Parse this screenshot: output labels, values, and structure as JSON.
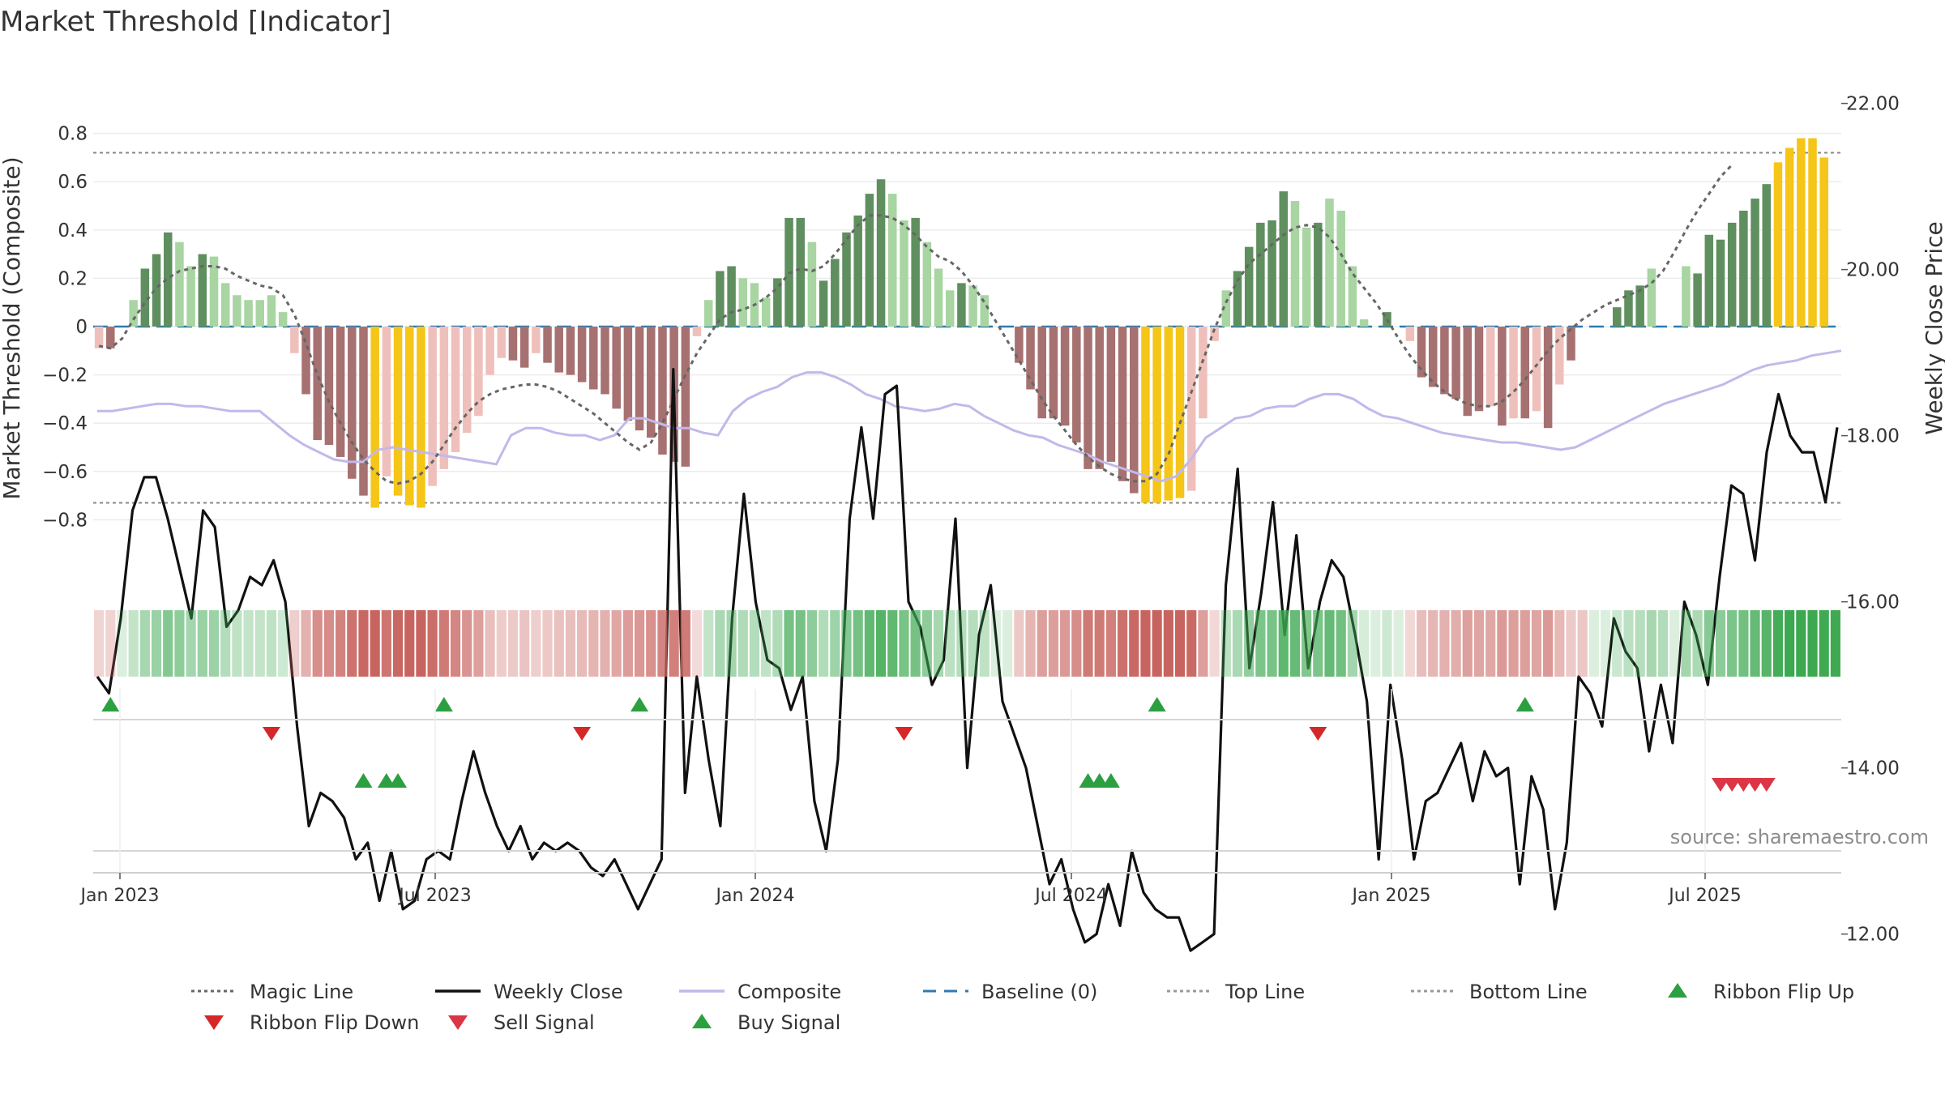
{
  "chart_data": {
    "type": "bar",
    "title": "Market Threshold [Indicator]",
    "ylabel_left": "Market Threshold (Composite)",
    "ylabel_right": "Weekly Close Price",
    "ylim_left": [
      -0.86,
      0.84
    ],
    "ylim_right": [
      11.2,
      23.7
    ],
    "yticks_left": [
      "0.8",
      "0.6",
      "0.4",
      "0.2",
      "0",
      "−0.2",
      "−0.4",
      "−0.6",
      "−0.8"
    ],
    "yticks_right": [
      "22.00",
      "20.00",
      "18.00",
      "16.00",
      "14.00",
      "12.00"
    ],
    "xticks": [
      "Jan 2023",
      "Jul 2023",
      "Jan 2024",
      "Jul 2024",
      "Jan 2025",
      "Jul 2025"
    ],
    "top_line": 0.72,
    "bottom_line": -0.73,
    "source": "source: sharemaestro.com",
    "legend": [
      "Magic Line",
      "Weekly Close",
      "Composite",
      "Baseline (0)",
      "Top Line",
      "Bottom Line",
      "Ribbon Flip Up",
      "Ribbon Flip Down",
      "Sell Signal",
      "Buy Signal"
    ],
    "colors": {
      "dark_green": "#5f8f5f",
      "light_green": "#a8d5a2",
      "dark_red": "#a67170",
      "light_red": "#efc0bb",
      "yellow": "#f5c518",
      "weekly_close": "#111111",
      "composite": "#c3b8ea",
      "magic_line": "#666666",
      "baseline": "#2e7bb0",
      "buy": "#2ca040",
      "sell": "#dc3545",
      "flip_down": "#d62728"
    },
    "series": {
      "histogram": [
        -0.09,
        -0.09,
        0.0,
        0.11,
        0.24,
        0.3,
        0.39,
        0.35,
        0.25,
        0.3,
        0.29,
        0.18,
        0.13,
        0.11,
        0.11,
        0.13,
        0.06,
        -0.11,
        -0.28,
        -0.47,
        -0.49,
        -0.54,
        -0.63,
        -0.7,
        -0.75,
        -0.62,
        -0.7,
        -0.74,
        -0.75,
        -0.66,
        -0.59,
        -0.52,
        -0.44,
        -0.37,
        -0.2,
        -0.13,
        -0.14,
        -0.17,
        -0.11,
        -0.15,
        -0.19,
        -0.2,
        -0.23,
        -0.26,
        -0.28,
        -0.34,
        -0.39,
        -0.43,
        -0.46,
        -0.53,
        -0.56,
        -0.58,
        -0.04,
        0.11,
        0.23,
        0.25,
        0.2,
        0.18,
        0.12,
        0.2,
        0.45,
        0.45,
        0.35,
        0.19,
        0.28,
        0.39,
        0.46,
        0.55,
        0.61,
        0.55,
        0.44,
        0.45,
        0.35,
        0.24,
        0.15,
        0.18,
        0.17,
        0.13,
        0.0,
        0.0,
        -0.15,
        -0.26,
        -0.38,
        -0.38,
        -0.41,
        -0.48,
        -0.59,
        -0.59,
        -0.56,
        -0.64,
        -0.69,
        -0.73,
        -0.73,
        -0.72,
        -0.71,
        -0.68,
        -0.38,
        -0.06,
        0.15,
        0.23,
        0.33,
        0.43,
        0.44,
        0.56,
        0.52,
        0.41,
        0.43,
        0.53,
        0.48,
        0.25,
        0.03,
        0.0,
        0.06,
        0.0,
        -0.06,
        -0.21,
        -0.25,
        -0.28,
        -0.3,
        -0.37,
        -0.35,
        -0.33,
        -0.41,
        -0.38,
        -0.38,
        -0.35,
        -0.42,
        -0.24,
        -0.14,
        -0.16,
        0.0,
        0.0,
        0.08,
        0.15,
        0.17,
        0.24,
        0.19,
        0.0,
        0.25,
        0.22,
        0.38,
        0.36,
        0.43,
        0.48,
        0.53,
        0.59,
        0.68,
        0.74,
        0.78,
        0.78,
        0.7,
        0.7
      ],
      "bar_color": [
        "LR",
        "DR",
        "N",
        "LG",
        "DG",
        "DG",
        "DG",
        "LG",
        "LG",
        "DG",
        "LG",
        "LG",
        "LG",
        "LG",
        "LG",
        "LG",
        "LG",
        "LR",
        "DR",
        "DR",
        "DR",
        "DR",
        "DR",
        "DR",
        "Y",
        "LR",
        "Y",
        "Y",
        "Y",
        "LR",
        "LR",
        "LR",
        "LR",
        "LR",
        "LR",
        "LR",
        "DR",
        "DR",
        "LR",
        "DR",
        "DR",
        "DR",
        "DR",
        "DR",
        "DR",
        "DR",
        "DR",
        "DR",
        "DR",
        "DR",
        "DR",
        "DR",
        "LR",
        "LG",
        "DG",
        "DG",
        "LG",
        "LG",
        "LG",
        "DG",
        "DG",
        "DG",
        "LG",
        "DG",
        "DG",
        "DG",
        "DG",
        "DG",
        "DG",
        "LG",
        "LG",
        "DG",
        "LG",
        "LG",
        "LG",
        "DG",
        "LG",
        "LG",
        "N",
        "N",
        "DR",
        "DR",
        "DR",
        "DR",
        "DR",
        "DR",
        "DR",
        "DR",
        "DR",
        "DR",
        "DR",
        "Y",
        "Y",
        "Y",
        "Y",
        "LR",
        "LR",
        "LR",
        "LG",
        "DG",
        "DG",
        "DG",
        "DG",
        "DG",
        "LG",
        "LG",
        "DG",
        "LG",
        "LG",
        "LG",
        "LG",
        "N",
        "DG",
        "N",
        "LR",
        "DR",
        "DR",
        "DR",
        "DR",
        "DR",
        "DR",
        "LR",
        "DR",
        "LR",
        "DR",
        "LR",
        "DR",
        "LR",
        "DR",
        "N",
        "N",
        "DG",
        "DG",
        "DG",
        "DG",
        "LG",
        "N",
        "DG",
        "LG",
        "DG",
        "DG",
        "DG",
        "DG",
        "DG",
        "DG",
        "DG",
        "Y",
        "Y",
        "Y",
        "Y",
        "Y"
      ],
      "magic_line": [
        -0.08,
        -0.09,
        -0.05,
        0.03,
        0.1,
        0.16,
        0.2,
        0.23,
        0.24,
        0.25,
        0.25,
        0.24,
        0.21,
        0.19,
        0.17,
        0.16,
        0.13,
        0.05,
        -0.07,
        -0.2,
        -0.31,
        -0.4,
        -0.48,
        -0.55,
        -0.6,
        -0.64,
        -0.65,
        -0.64,
        -0.61,
        -0.56,
        -0.49,
        -0.42,
        -0.36,
        -0.31,
        -0.28,
        -0.26,
        -0.25,
        -0.24,
        -0.24,
        -0.25,
        -0.27,
        -0.3,
        -0.33,
        -0.36,
        -0.4,
        -0.44,
        -0.48,
        -0.51,
        -0.48,
        -0.4,
        -0.3,
        -0.2,
        -0.11,
        -0.04,
        0.03,
        0.06,
        0.07,
        0.09,
        0.12,
        0.16,
        0.22,
        0.24,
        0.23,
        0.25,
        0.3,
        0.36,
        0.42,
        0.46,
        0.46,
        0.45,
        0.42,
        0.38,
        0.33,
        0.29,
        0.27,
        0.23,
        0.17,
        0.1,
        0.02,
        -0.06,
        -0.14,
        -0.22,
        -0.3,
        -0.37,
        -0.43,
        -0.49,
        -0.54,
        -0.58,
        -0.61,
        -0.63,
        -0.64,
        -0.64,
        -0.61,
        -0.53,
        -0.4,
        -0.27,
        -0.14,
        -0.01,
        0.1,
        0.19,
        0.26,
        0.3,
        0.34,
        0.38,
        0.41,
        0.42,
        0.41,
        0.37,
        0.3,
        0.22,
        0.16,
        0.1,
        0.03,
        -0.05,
        -0.12,
        -0.18,
        -0.23,
        -0.27,
        -0.3,
        -0.32,
        -0.33,
        -0.33,
        -0.31,
        -0.27,
        -0.22,
        -0.16,
        -0.1,
        -0.05,
        -0.01,
        0.03,
        0.06,
        0.09,
        0.11,
        0.13,
        0.15,
        0.18,
        0.23,
        0.31,
        0.4,
        0.48,
        0.55,
        0.62,
        0.67
      ],
      "composite": [
        -0.35,
        -0.35,
        -0.34,
        -0.33,
        -0.32,
        -0.32,
        -0.33,
        -0.33,
        -0.34,
        -0.35,
        -0.35,
        -0.35,
        -0.4,
        -0.45,
        -0.49,
        -0.52,
        -0.55,
        -0.56,
        -0.56,
        -0.51,
        -0.5,
        -0.51,
        -0.52,
        -0.53,
        -0.54,
        -0.55,
        -0.56,
        -0.57,
        -0.45,
        -0.42,
        -0.42,
        -0.44,
        -0.45,
        -0.45,
        -0.47,
        -0.45,
        -0.38,
        -0.38,
        -0.4,
        -0.42,
        -0.42,
        -0.44,
        -0.45,
        -0.35,
        -0.3,
        -0.27,
        -0.25,
        -0.21,
        -0.19,
        -0.19,
        -0.21,
        -0.24,
        -0.28,
        -0.3,
        -0.33,
        -0.34,
        -0.35,
        -0.34,
        -0.32,
        -0.33,
        -0.37,
        -0.4,
        -0.43,
        -0.45,
        -0.46,
        -0.49,
        -0.51,
        -0.53,
        -0.56,
        -0.58,
        -0.6,
        -0.62,
        -0.64,
        -0.62,
        -0.55,
        -0.46,
        -0.42,
        -0.38,
        -0.37,
        -0.34,
        -0.33,
        -0.33,
        -0.3,
        -0.28,
        -0.28,
        -0.3,
        -0.34,
        -0.37,
        -0.38,
        -0.4,
        -0.42,
        -0.44,
        -0.45,
        -0.46,
        -0.47,
        -0.48,
        -0.48,
        -0.49,
        -0.5,
        -0.51,
        -0.5,
        -0.47,
        -0.44,
        -0.41,
        -0.38,
        -0.35,
        -0.32,
        -0.3,
        -0.28,
        -0.26,
        -0.24,
        -0.21,
        -0.18,
        -0.16,
        -0.15,
        -0.14,
        -0.12,
        -0.11,
        -0.1
      ],
      "weekly_close": [
        15.1,
        14.9,
        15.8,
        17.1,
        17.5,
        17.5,
        17.0,
        16.4,
        15.8,
        17.1,
        16.9,
        15.7,
        15.9,
        16.3,
        16.2,
        16.5,
        16.0,
        14.5,
        13.3,
        13.7,
        13.6,
        13.4,
        12.9,
        13.1,
        12.4,
        13.0,
        12.3,
        12.4,
        12.9,
        13.0,
        12.9,
        13.6,
        14.2,
        13.7,
        13.3,
        13.0,
        13.3,
        12.9,
        13.1,
        13.0,
        13.1,
        13.0,
        12.8,
        12.7,
        12.9,
        12.6,
        12.3,
        12.6,
        12.9,
        18.8,
        13.7,
        15.1,
        14.1,
        13.3,
        15.8,
        17.3,
        16.0,
        15.3,
        15.2,
        14.7,
        15.1,
        13.6,
        13.0,
        14.1,
        17.0,
        18.1,
        17.0,
        18.5,
        18.6,
        16.0,
        15.7,
        15.0,
        15.3,
        17.0,
        14.0,
        15.6,
        16.2,
        14.8,
        14.4,
        14.0,
        13.3,
        12.6,
        12.9,
        12.3,
        11.9,
        12.0,
        12.6,
        12.1,
        13.0,
        12.5,
        12.3,
        12.2,
        12.2,
        11.8,
        11.9,
        12.0,
        16.2,
        17.6,
        15.2,
        16.1,
        17.2,
        15.6,
        16.8,
        15.2,
        16.0,
        16.5,
        16.3,
        15.6,
        14.8,
        12.9,
        15.0,
        14.1,
        12.9,
        13.6,
        13.7,
        14.0,
        14.3,
        13.6,
        14.2,
        13.9,
        14.0,
        12.6,
        13.9,
        13.5,
        12.3,
        13.1,
        15.1,
        14.9,
        14.5,
        15.8,
        15.4,
        15.2,
        14.2,
        15.0,
        14.3,
        16.0,
        15.6,
        15.0,
        16.3,
        17.4,
        17.3,
        16.5,
        17.8,
        18.5,
        18.0,
        17.8,
        17.8,
        17.2,
        18.1
      ]
    },
    "ribbon_flip_up_weeks": [
      1,
      30,
      47,
      92,
      124
    ],
    "ribbon_flip_down_weeks": [
      15,
      42,
      70,
      106
    ],
    "buy_signal_weeks": [
      23,
      25,
      26,
      86,
      87,
      88
    ],
    "sell_signal_weeks": [
      141,
      142,
      143,
      144,
      145
    ]
  }
}
